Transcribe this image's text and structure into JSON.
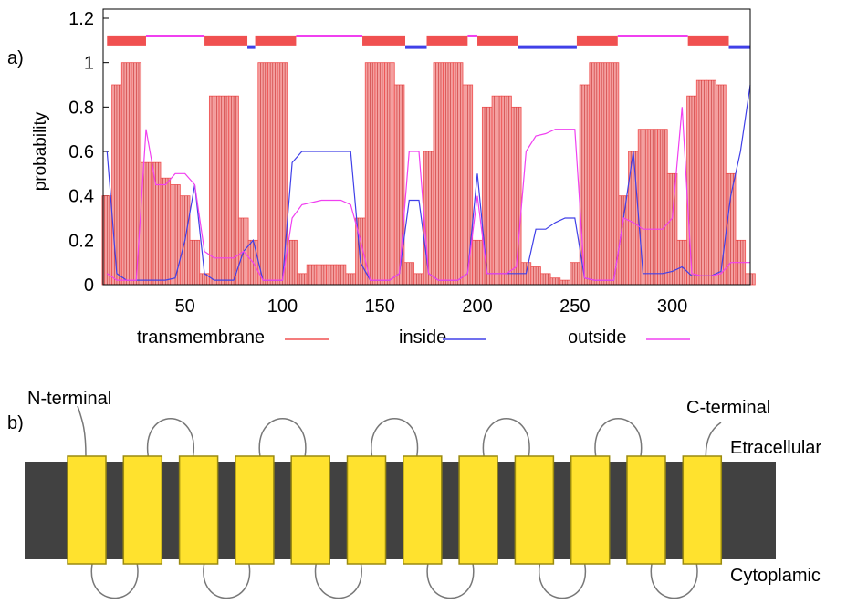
{
  "panel_labels": [
    "a)",
    "b)"
  ],
  "chart_data": {
    "type": "tmhmm",
    "ylabel": "probability",
    "xlim": [
      8,
      340
    ],
    "ylim": [
      0,
      1.2
    ],
    "xticks": [
      50,
      100,
      150,
      200,
      250,
      300
    ],
    "yticks": [
      0,
      0.2,
      0.4,
      0.6,
      0.8,
      1,
      1.2
    ],
    "x": [
      10,
      15,
      20,
      25,
      30,
      35,
      40,
      45,
      50,
      55,
      60,
      65,
      70,
      75,
      80,
      85,
      90,
      95,
      100,
      105,
      110,
      115,
      120,
      125,
      130,
      135,
      140,
      145,
      150,
      155,
      160,
      165,
      170,
      175,
      180,
      185,
      190,
      195,
      200,
      205,
      210,
      215,
      220,
      225,
      230,
      235,
      240,
      245,
      250,
      255,
      260,
      265,
      270,
      275,
      280,
      285,
      290,
      295,
      300,
      305,
      310,
      315,
      320,
      325,
      330,
      335,
      340
    ],
    "series": [
      {
        "name": "transmembrane",
        "color": "#f05050",
        "style": "bars",
        "values": [
          0.4,
          0.9,
          1.0,
          1.0,
          0.55,
          0.55,
          0.48,
          0.45,
          0.4,
          0.2,
          0.05,
          0.85,
          0.85,
          0.85,
          0.3,
          0.2,
          1.0,
          1.0,
          1.0,
          0.2,
          0.05,
          0.09,
          0.09,
          0.09,
          0.09,
          0.05,
          0.3,
          1.0,
          1.0,
          1.0,
          0.9,
          0.1,
          0.05,
          0.6,
          1.0,
          1.0,
          1.0,
          0.9,
          0.2,
          0.8,
          0.85,
          0.85,
          0.8,
          0.1,
          0.08,
          0.05,
          0.03,
          0.02,
          0.1,
          0.9,
          1.0,
          1.0,
          1.0,
          0.4,
          0.6,
          0.7,
          0.7,
          0.7,
          0.5,
          0.2,
          0.85,
          0.92,
          0.92,
          0.9,
          0.5,
          0.2,
          0.05
        ],
        "segments": [
          [
            10,
            30
          ],
          [
            60,
            82
          ],
          [
            86,
            107
          ],
          [
            141,
            163
          ],
          [
            174,
            195
          ],
          [
            200,
            221
          ],
          [
            251,
            272
          ],
          [
            308,
            329
          ]
        ]
      },
      {
        "name": "inside",
        "color": "#4040e8",
        "style": "line",
        "values": [
          0.6,
          0.05,
          0.02,
          0.02,
          0.02,
          0.02,
          0.02,
          0.03,
          0.2,
          0.45,
          0.05,
          0.02,
          0.02,
          0.02,
          0.15,
          0.2,
          0.02,
          0.02,
          0.02,
          0.55,
          0.6,
          0.6,
          0.6,
          0.6,
          0.6,
          0.6,
          0.1,
          0.02,
          0.02,
          0.02,
          0.05,
          0.38,
          0.38,
          0.05,
          0.02,
          0.02,
          0.02,
          0.05,
          0.5,
          0.05,
          0.05,
          0.05,
          0.05,
          0.05,
          0.25,
          0.25,
          0.28,
          0.3,
          0.3,
          0.03,
          0.02,
          0.02,
          0.02,
          0.3,
          0.6,
          0.05,
          0.05,
          0.05,
          0.06,
          0.08,
          0.04,
          0.04,
          0.04,
          0.06,
          0.4,
          0.6,
          0.9
        ],
        "segments": [
          [
            82,
            86
          ],
          [
            163,
            174
          ],
          [
            221,
            251
          ],
          [
            329,
            340
          ]
        ]
      },
      {
        "name": "outside",
        "color": "#f040f0",
        "style": "line",
        "values": [
          0.05,
          0.02,
          0.02,
          0.02,
          0.7,
          0.45,
          0.45,
          0.5,
          0.5,
          0.45,
          0.15,
          0.12,
          0.12,
          0.12,
          0.15,
          0.1,
          0.02,
          0.02,
          0.02,
          0.3,
          0.36,
          0.37,
          0.38,
          0.38,
          0.38,
          0.36,
          0.2,
          0.02,
          0.02,
          0.02,
          0.05,
          0.6,
          0.6,
          0.05,
          0.02,
          0.02,
          0.02,
          0.05,
          0.4,
          0.05,
          0.05,
          0.05,
          0.08,
          0.6,
          0.67,
          0.68,
          0.7,
          0.7,
          0.7,
          0.03,
          0.02,
          0.02,
          0.02,
          0.3,
          0.28,
          0.25,
          0.25,
          0.25,
          0.3,
          0.8,
          0.05,
          0.04,
          0.04,
          0.05,
          0.1,
          0.1,
          0.1
        ],
        "segments": [
          [
            30,
            60
          ],
          [
            107,
            141
          ],
          [
            195,
            200
          ],
          [
            272,
            308
          ]
        ]
      }
    ]
  },
  "diagram": {
    "n_label": "N-terminal",
    "c_label": "C-terminal",
    "top_label": "Etracellular",
    "bottom_label": "Cytoplamic"
  }
}
